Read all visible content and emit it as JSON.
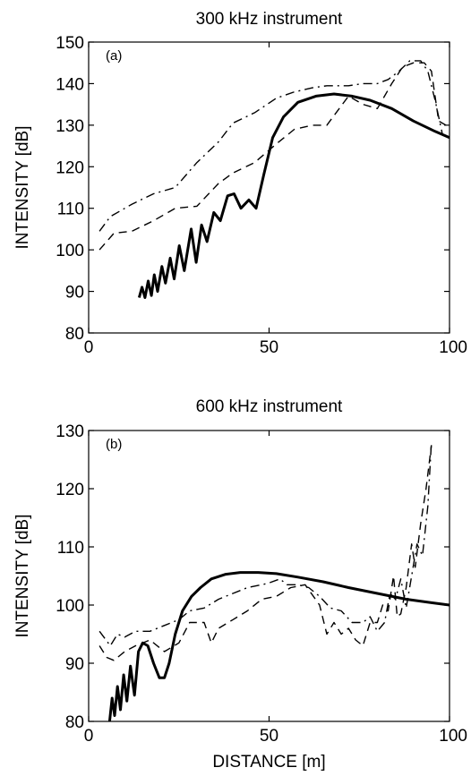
{
  "chart_data": [
    {
      "type": "line",
      "panel_label": "(a)",
      "title": "300 kHz instrument",
      "xlabel": "",
      "ylabel": "INTENSITY [dB]",
      "xlim": [
        0,
        100
      ],
      "ylim": [
        80,
        150
      ],
      "xticks": [
        0,
        50,
        100
      ],
      "yticks": [
        80,
        90,
        100,
        110,
        120,
        130,
        140,
        150
      ],
      "grid": false,
      "series": [
        {
          "style": "solid",
          "x": [
            14,
            14.8,
            15.6,
            16.5,
            17.4,
            18.2,
            19.1,
            20.3,
            21.3,
            22.6,
            23.7,
            25.1,
            26.5,
            28.4,
            29.8,
            31.3,
            32.8,
            34.7,
            36.5,
            38.5,
            40.3,
            42.2,
            44.4,
            46.4,
            48.5,
            51,
            54,
            58,
            63,
            68,
            73,
            78,
            84,
            90,
            96,
            100
          ],
          "y": [
            88.5,
            91,
            88.5,
            92.5,
            89,
            94,
            90,
            96,
            92,
            98,
            93,
            101,
            95,
            105,
            97,
            106,
            102,
            109,
            107,
            113,
            113.5,
            110,
            112,
            110,
            118,
            127,
            132,
            135.5,
            137,
            137.5,
            137,
            136,
            134,
            131,
            128.5,
            127
          ]
        },
        {
          "style": "dashed",
          "x": [
            3,
            7,
            12,
            18,
            24,
            30,
            36,
            40,
            46,
            52,
            57,
            62,
            66,
            72,
            76,
            80,
            84,
            87,
            90,
            93,
            95,
            97,
            99
          ],
          "y": [
            100,
            104,
            104.5,
            107,
            110,
            110.5,
            116,
            118.5,
            121,
            125.5,
            129,
            130,
            130,
            137,
            135,
            134,
            140,
            144,
            145,
            145,
            143,
            131,
            130
          ]
        },
        {
          "style": "dashdot",
          "x": [
            3,
            6,
            12,
            18,
            24,
            30,
            36,
            40,
            46,
            52,
            57,
            62,
            66,
            72,
            76,
            80,
            83,
            86,
            89,
            92,
            94,
            96,
            98
          ],
          "y": [
            104.5,
            108,
            111,
            113.5,
            115,
            121,
            126,
            130.5,
            133,
            136.5,
            138,
            139,
            139.5,
            139.5,
            140,
            140,
            141,
            143,
            145.5,
            145.5,
            143,
            136,
            128
          ]
        }
      ]
    },
    {
      "type": "line",
      "panel_label": "(b)",
      "title": "600 kHz instrument",
      "xlabel": "DISTANCE [m]",
      "ylabel": "INTENSITY [dB]",
      "xlim": [
        0,
        100
      ],
      "ylim": [
        80,
        130
      ],
      "xticks": [
        0,
        50,
        100
      ],
      "yticks": [
        80,
        90,
        100,
        110,
        120,
        130
      ],
      "grid": false,
      "series": [
        {
          "style": "solid",
          "x": [
            5.8,
            6.5,
            7.2,
            8,
            8.8,
            9.7,
            10.6,
            11.6,
            12.7,
            13.8,
            15,
            16.4,
            18,
            19.6,
            21,
            22.3,
            24,
            26,
            28.5,
            31,
            34,
            38,
            42,
            47,
            52,
            58,
            65,
            72,
            80,
            88,
            95,
            100
          ],
          "y": [
            80,
            84,
            81,
            86,
            82,
            88,
            83.5,
            89.5,
            84.5,
            92,
            93.5,
            93,
            90,
            87.5,
            87.5,
            90,
            95,
            99,
            101.5,
            103,
            104.5,
            105.3,
            105.6,
            105.6,
            105.4,
            104.8,
            104,
            103,
            102,
            101,
            100.4,
            100
          ]
        },
        {
          "style": "dashed",
          "x": [
            3,
            5,
            7,
            10,
            13,
            17,
            21,
            25,
            28,
            32,
            34,
            36,
            40,
            44,
            48,
            52,
            56,
            60,
            64,
            66,
            68,
            70,
            72,
            74,
            76,
            78,
            80,
            81.5,
            83,
            84.5,
            85.5,
            86.5,
            88,
            89.5,
            90.5,
            92,
            93.5,
            95
          ],
          "y": [
            93,
            91,
            90.5,
            92,
            93,
            94,
            92,
            93.5,
            97,
            97,
            93.5,
            96,
            97.5,
            99,
            101,
            101.5,
            103,
            103.5,
            100,
            95,
            97,
            95,
            96,
            94,
            93,
            97,
            97,
            100,
            99,
            105,
            98,
            98.5,
            103,
            110.5,
            106.5,
            114,
            120,
            127.5
          ]
        },
        {
          "style": "dashdot",
          "x": [
            3,
            6,
            8,
            10,
            13,
            17,
            21,
            25,
            28,
            32,
            36,
            40,
            44,
            48,
            50,
            53,
            55,
            58,
            61,
            64,
            67,
            70,
            73,
            76,
            78,
            80,
            82,
            83.5,
            85,
            86.5,
            88,
            89.5,
            91,
            92.5,
            94,
            95
          ],
          "y": [
            95.5,
            93,
            95,
            94.5,
            95.5,
            95.5,
            96.5,
            97.5,
            99,
            99.5,
            101,
            102,
            103,
            103.5,
            103.8,
            104.5,
            103.5,
            103.5,
            103,
            101.5,
            99.5,
            99,
            97,
            97,
            98,
            95.5,
            97,
            102,
            101,
            104.5,
            99.5,
            105,
            110.5,
            108.5,
            117,
            128
          ]
        }
      ]
    }
  ]
}
